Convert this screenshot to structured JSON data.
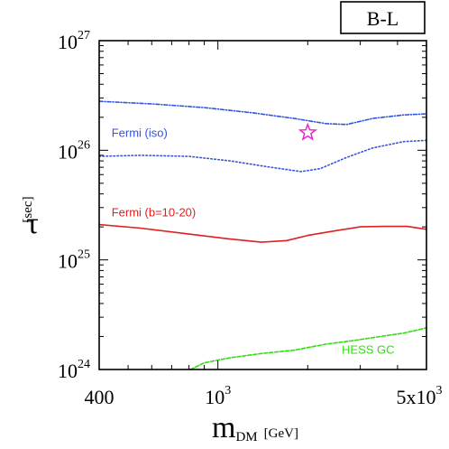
{
  "chart_data": {
    "type": "line",
    "title": "",
    "tag": "B-L",
    "x_scale": "log",
    "y_scale": "log",
    "xlim": [
      400,
      5000
    ],
    "ylim": [
      1e+24,
      1e+27
    ],
    "grid": false,
    "xlabel": {
      "main": "m",
      "sub": "DM",
      "unit": "[GeV]"
    },
    "ylabel": {
      "main": "τ",
      "unit": "[sec]"
    },
    "xticks": [
      {
        "value": 400,
        "label": "400"
      },
      {
        "value": 1000,
        "base": "10",
        "exp": "3"
      },
      {
        "value": 5000,
        "base": "5x10",
        "exp": "3"
      }
    ],
    "yticks": [
      {
        "value": 1e+24,
        "base": "10",
        "exp": "24"
      },
      {
        "value": 1e+25,
        "base": "10",
        "exp": "25"
      },
      {
        "value": 1e+26,
        "base": "10",
        "exp": "26"
      },
      {
        "value": 1e+27,
        "base": "10",
        "exp": "27"
      }
    ],
    "series": [
      {
        "name": "Fermi (iso)",
        "color": "#3355dd",
        "dash": "dashdot",
        "label_at": [
          440,
          1.32e+26
        ],
        "points": [
          [
            400,
            2.8e+26
          ],
          [
            600,
            2.65e+26
          ],
          [
            900,
            2.45e+26
          ],
          [
            1300,
            2.2e+26
          ],
          [
            1800,
            1.95e+26
          ],
          [
            2300,
            1.75e+26
          ],
          [
            2700,
            1.72e+26
          ],
          [
            3300,
            1.95e+26
          ],
          [
            4200,
            2.1e+26
          ],
          [
            5000,
            2.15e+26
          ]
        ]
      },
      {
        "name": "",
        "color": "#3355dd",
        "dash": "dotted",
        "points": [
          [
            400,
            8.8e+25
          ],
          [
            550,
            9e+25
          ],
          [
            800,
            8.8e+25
          ],
          [
            1100,
            8e+25
          ],
          [
            1500,
            7e+25
          ],
          [
            1900,
            6.4e+25
          ],
          [
            2200,
            6.8e+25
          ],
          [
            2700,
            8.6e+25
          ],
          [
            3300,
            1.05e+26
          ],
          [
            4200,
            1.2e+26
          ],
          [
            5000,
            1.23e+26
          ]
        ]
      },
      {
        "name": "Fermi (b=10-20)",
        "color": "#e02020",
        "dash": "solid",
        "label_at": [
          440,
          2.5e+25
        ],
        "points": [
          [
            400,
            2.1e+25
          ],
          [
            550,
            1.95e+25
          ],
          [
            800,
            1.72e+25
          ],
          [
            1100,
            1.55e+25
          ],
          [
            1400,
            1.45e+25
          ],
          [
            1700,
            1.5e+25
          ],
          [
            2000,
            1.67e+25
          ],
          [
            2500,
            1.85e+25
          ],
          [
            3000,
            2e+25
          ],
          [
            3600,
            2.02e+25
          ],
          [
            4300,
            2.02e+25
          ],
          [
            5000,
            1.9e+25
          ]
        ]
      },
      {
        "name": "HESS GC",
        "color": "#33dd11",
        "dash": "dashed",
        "label_at": [
          2600,
          1.4e+24
        ],
        "points": [
          [
            810,
            1e+24
          ],
          [
            900,
            1.15e+24
          ],
          [
            1100,
            1.28e+24
          ],
          [
            1400,
            1.4e+24
          ],
          [
            1800,
            1.5e+24
          ],
          [
            2300,
            1.7e+24
          ],
          [
            2900,
            1.85e+24
          ],
          [
            3500,
            2e+24
          ],
          [
            4200,
            2.15e+24
          ],
          [
            5000,
            2.4e+24
          ]
        ]
      }
    ],
    "markers": [
      {
        "shape": "star",
        "color": "#ee22cc",
        "x": 2000,
        "y": 1.45e+26
      }
    ]
  }
}
